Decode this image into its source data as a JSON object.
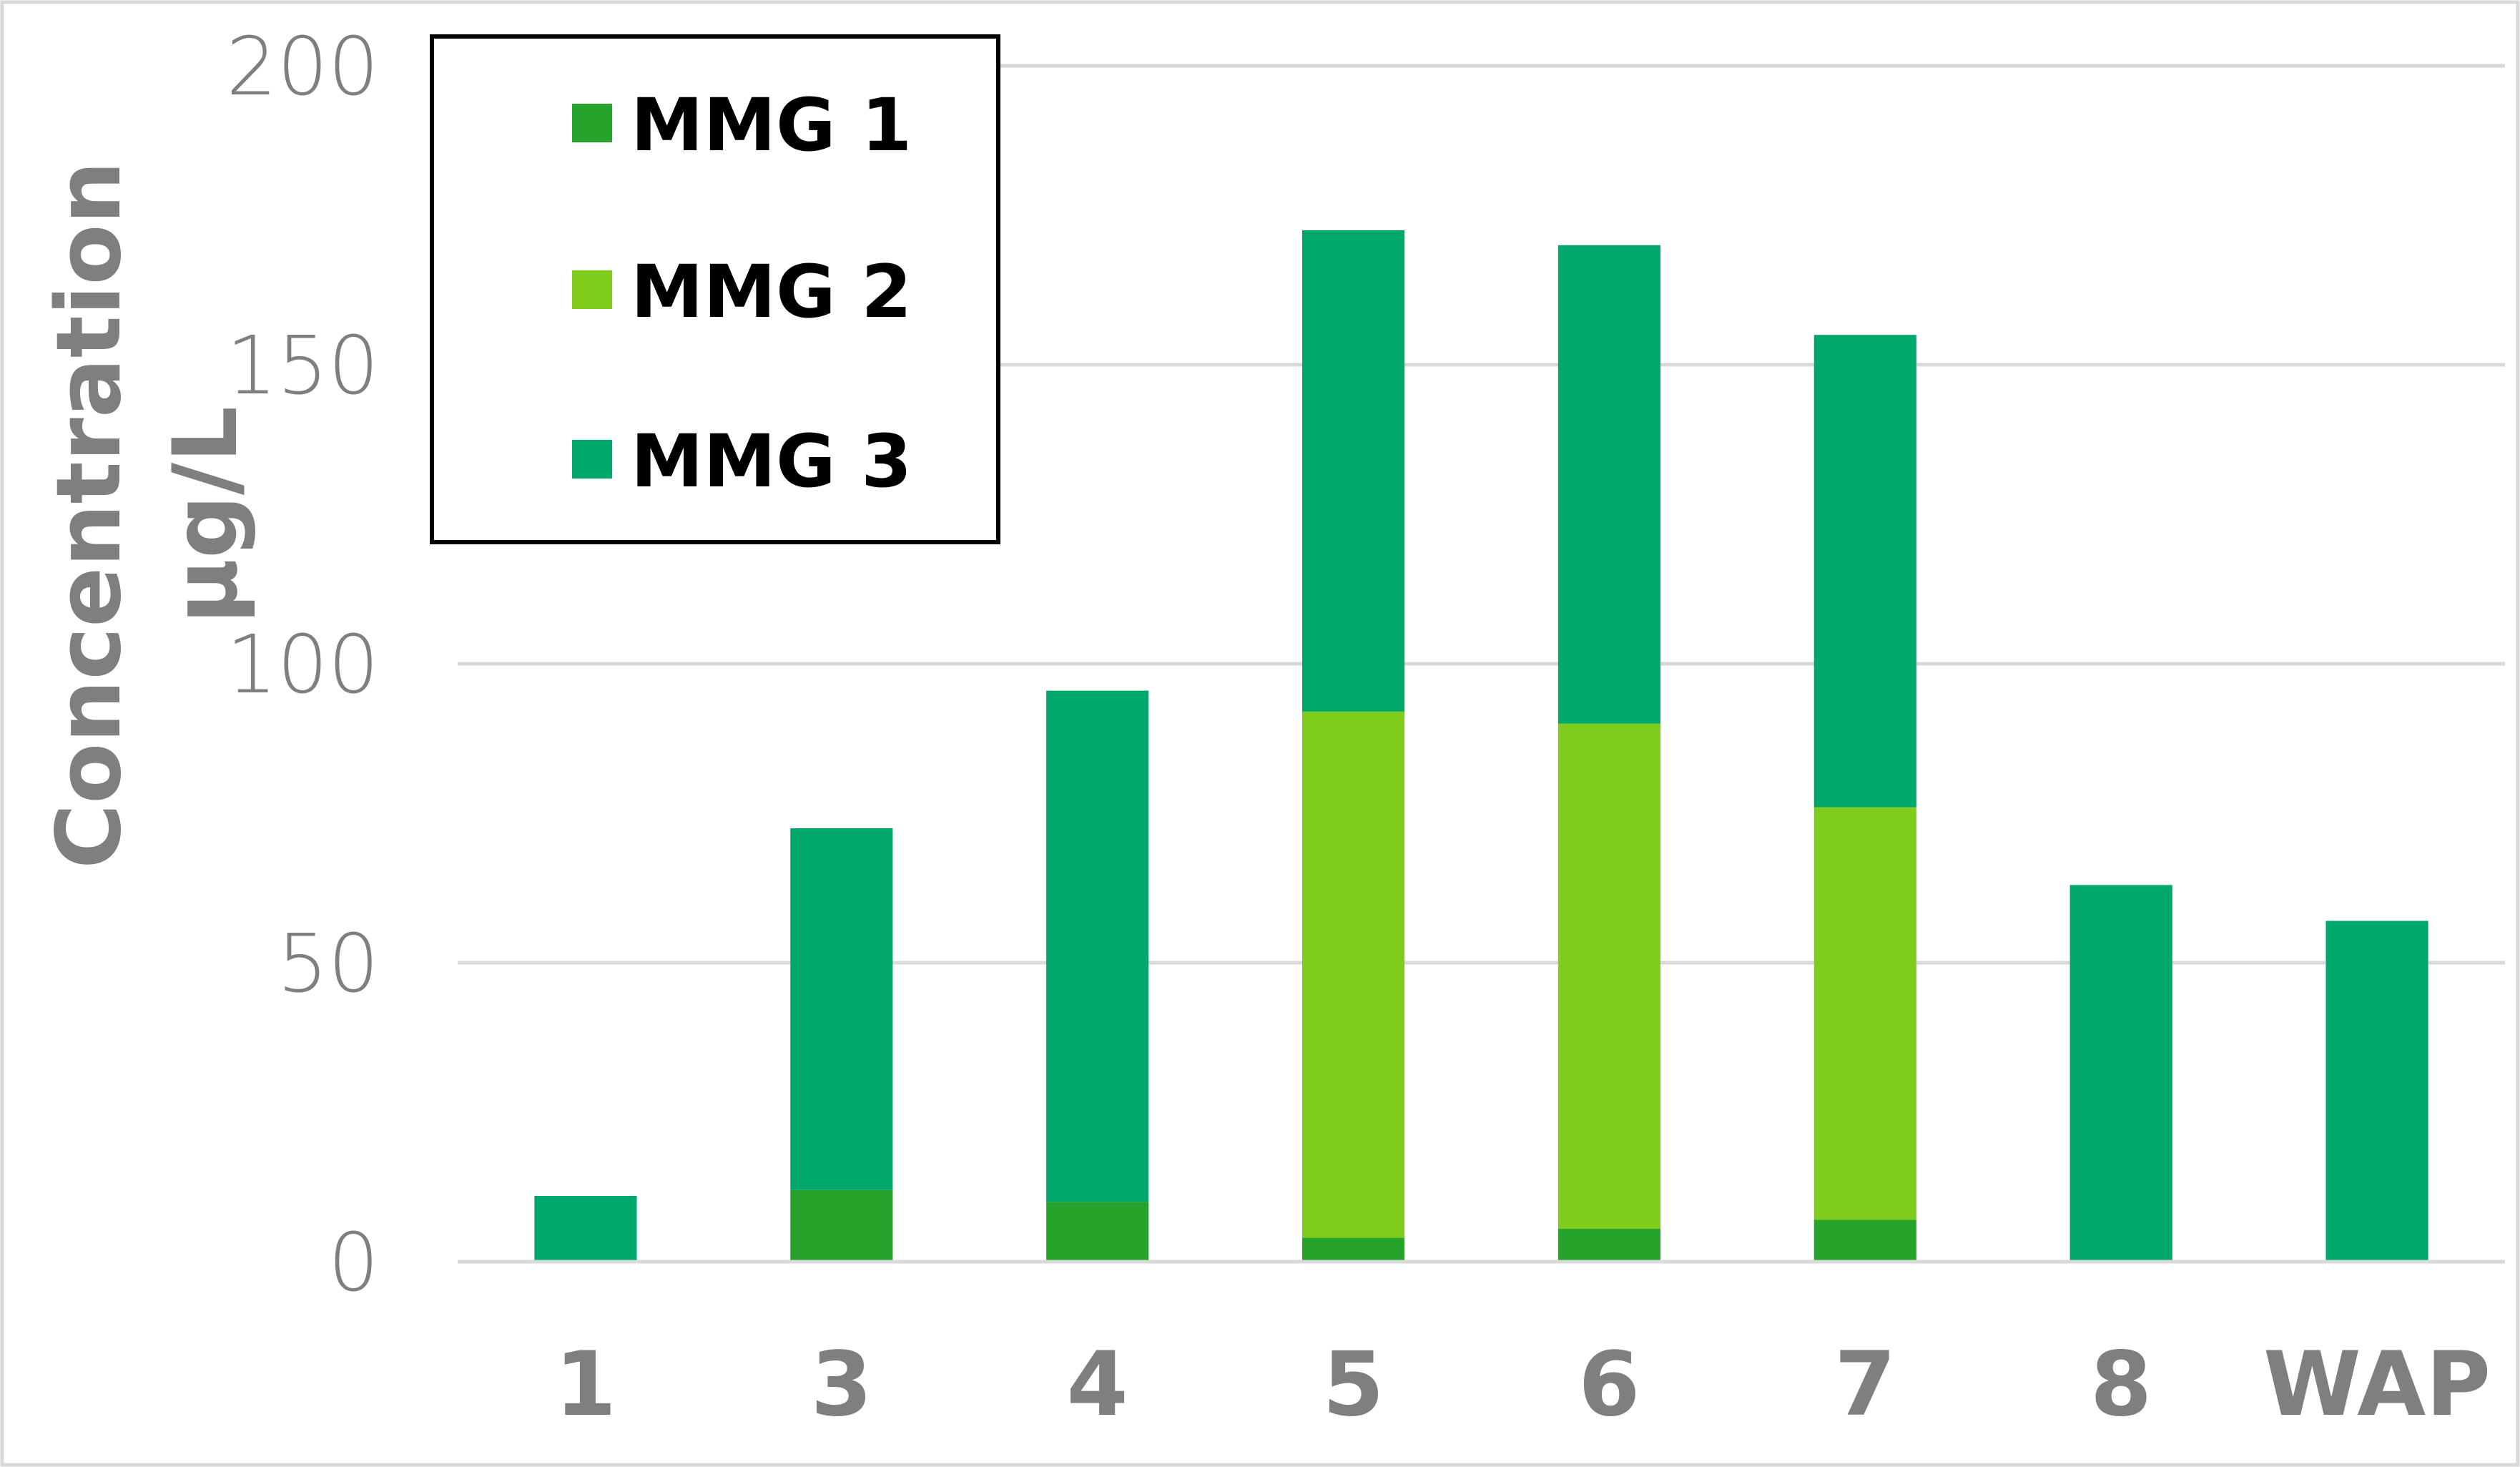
{
  "chart_data": {
    "type": "bar",
    "stacked": true,
    "categories": [
      "1",
      "3",
      "4",
      "5",
      "6",
      "7",
      "8",
      "WAP"
    ],
    "series": [
      {
        "name": "MMG 1",
        "color": "#26a32b",
        "values": [
          0,
          12,
          10,
          4,
          5.5,
          7,
          0,
          0
        ]
      },
      {
        "name": "MMG 2",
        "color": "#80cc1c",
        "values": [
          0,
          0,
          0,
          88,
          84.5,
          69,
          0,
          0
        ]
      },
      {
        "name": "MMG 3",
        "color": "#00a96b",
        "values": [
          11,
          60.5,
          85.5,
          80.5,
          80,
          79,
          63,
          57
        ]
      }
    ],
    "ylabel_line1": "Concentration",
    "ylabel_line2": "µg/L",
    "ylim": [
      0,
      200
    ],
    "yticks": [
      "0",
      "50",
      "100",
      "150",
      "200"
    ],
    "grid": true,
    "legend_position": "top-left"
  }
}
